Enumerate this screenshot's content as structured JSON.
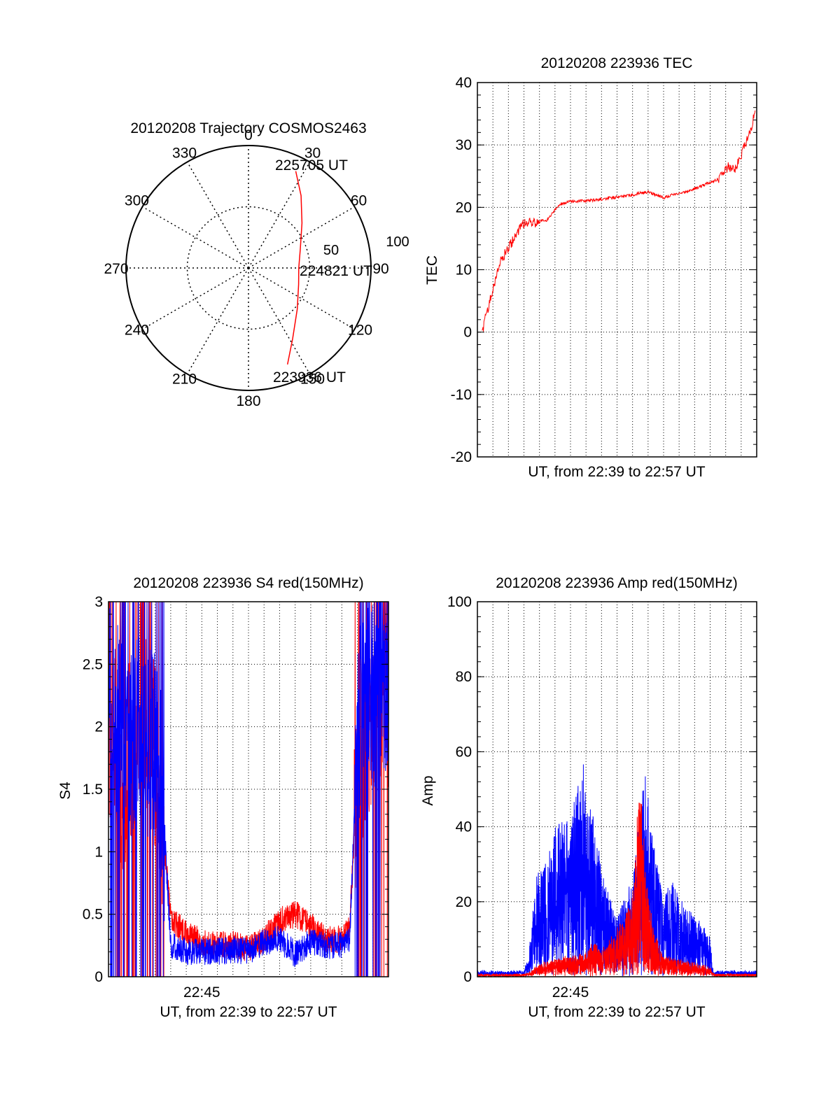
{
  "chart_data": [
    {
      "id": "trajectory",
      "type": "polar",
      "title": "20120208 Trajectory COSMOS2463",
      "angle_labels": [
        "0",
        "30",
        "60",
        "90",
        "120",
        "150",
        "180",
        "210",
        "240",
        "270",
        "300",
        "330"
      ],
      "radial_labels": [
        "50",
        "100"
      ],
      "radius_max": 100,
      "rings": [
        50,
        100
      ],
      "time_labels": {
        "start": "223936 UT",
        "mid": "224821 UT",
        "end": "225705 UT"
      },
      "track": [
        {
          "az": 158,
          "r": 85
        },
        {
          "az": 148,
          "r": 68
        },
        {
          "az": 130,
          "r": 52
        },
        {
          "az": 108,
          "r": 43
        },
        {
          "az": 90,
          "r": 41
        },
        {
          "az": 70,
          "r": 45
        },
        {
          "az": 50,
          "r": 57
        },
        {
          "az": 36,
          "r": 73
        },
        {
          "az": 26,
          "r": 88
        }
      ],
      "track_color": "#ff0000"
    },
    {
      "id": "tec",
      "type": "line",
      "title": "20120208 223936 TEC",
      "xlabel": "UT, from 22:39 to 22:57 UT",
      "ylabel": "TEC",
      "xlim": [
        0,
        18
      ],
      "ylim": [
        -20,
        40
      ],
      "yticks": [
        "-20",
        "-10",
        "0",
        "10",
        "20",
        "30",
        "40"
      ],
      "xticks": [],
      "grid": true,
      "series": [
        {
          "color": "#ff0000",
          "x": [
            0.3,
            0.6,
            1.0,
            1.5,
            2.0,
            2.6,
            3.0,
            3.6,
            4.5,
            5.3,
            6.0,
            7.0,
            8.5,
            10.0,
            11.0,
            12.0,
            12.5,
            13.5,
            14.5,
            15.5,
            16.2,
            16.6,
            17.1,
            17.6,
            17.9
          ],
          "y": [
            0,
            3,
            7,
            11.5,
            13.5,
            16,
            17.5,
            17.5,
            18,
            20.5,
            21,
            21,
            21.5,
            22,
            22.5,
            21.5,
            22,
            22.5,
            23.5,
            24.5,
            26.5,
            26,
            29,
            32,
            35.5
          ]
        }
      ]
    },
    {
      "id": "s4",
      "type": "line",
      "title": "20120208 223936 S4 red(150MHz)",
      "xlabel": "UT, from 22:39 to 22:57 UT",
      "ylabel": "S4",
      "xlim": [
        0,
        18
      ],
      "ylim": [
        0,
        3
      ],
      "yticks": [
        "0",
        "0.5",
        "1",
        "1.5",
        "2",
        "2.5",
        "3"
      ],
      "xticks": [
        {
          "x": 6,
          "label": "22:45"
        }
      ],
      "grid": true,
      "series": [
        {
          "name": "red",
          "color": "#ff0000",
          "x": [
            0,
            1,
            2,
            3,
            3.5,
            4,
            5,
            6,
            7,
            8,
            9,
            10,
            11,
            12,
            13,
            14,
            15,
            15.5,
            16,
            17,
            18
          ],
          "y": [
            2.0,
            1.5,
            2.2,
            1.8,
            1.2,
            0.45,
            0.35,
            0.28,
            0.25,
            0.26,
            0.22,
            0.3,
            0.45,
            0.5,
            0.42,
            0.3,
            0.3,
            0.4,
            1.6,
            2.2,
            2.3
          ]
        },
        {
          "name": "blue",
          "color": "#0000ff",
          "x": [
            0,
            1,
            2,
            3,
            3.5,
            4,
            5,
            6,
            7,
            8,
            9,
            10,
            11,
            12,
            13,
            14,
            15,
            15.5,
            16,
            17,
            18
          ],
          "y": [
            2.2,
            1.9,
            2.0,
            1.8,
            1.4,
            0.25,
            0.2,
            0.2,
            0.2,
            0.22,
            0.2,
            0.28,
            0.3,
            0.18,
            0.28,
            0.25,
            0.25,
            0.3,
            2.0,
            2.3,
            2.4
          ]
        }
      ]
    },
    {
      "id": "amp",
      "type": "line",
      "title": "20120208 223936 Amp red(150MHz)",
      "xlabel": "UT, from 22:39 to 22:57 UT",
      "ylabel": "Amp",
      "xlim": [
        0,
        18
      ],
      "ylim": [
        0,
        100
      ],
      "yticks": [
        "0",
        "20",
        "40",
        "60",
        "80",
        "100"
      ],
      "xticks": [
        {
          "x": 6,
          "label": "22:45"
        }
      ],
      "grid": true,
      "series": [
        {
          "name": "blue",
          "color": "#0000ff",
          "x": [
            0,
            1,
            2,
            3,
            3.3,
            3.8,
            4.5,
            5,
            5.7,
            6.2,
            6.8,
            7.3,
            8,
            8.5,
            9,
            9.5,
            10,
            10.4,
            10.8,
            11.3,
            12,
            12.5,
            13,
            14,
            15,
            15.2,
            16,
            17,
            18
          ],
          "y": [
            1,
            1,
            1,
            1,
            5,
            25,
            30,
            38,
            40,
            45,
            55,
            45,
            28,
            20,
            15,
            20,
            25,
            40,
            55,
            35,
            20,
            25,
            20,
            15,
            10,
            1,
            1,
            1,
            1
          ]
        },
        {
          "name": "red",
          "color": "#ff0000",
          "x": [
            0,
            3,
            3.5,
            4,
            5,
            6,
            7,
            7.5,
            8,
            9,
            9.5,
            10,
            10.2,
            10.5,
            11,
            11.5,
            12,
            13,
            14,
            15,
            15.3,
            18
          ],
          "y": [
            0,
            0,
            1,
            3,
            4,
            5,
            6,
            9,
            6,
            12,
            15,
            20,
            35,
            50,
            20,
            10,
            5,
            4,
            3,
            2,
            0,
            0
          ]
        }
      ]
    }
  ]
}
